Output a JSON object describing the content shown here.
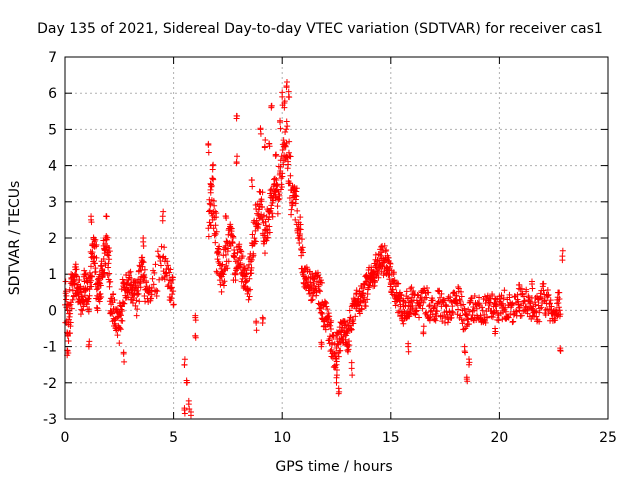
{
  "chart_data": {
    "type": "scatter",
    "title": "Day 135 of 2021, Sidereal Day-to-day VTEC variation (SDTVAR) for receiver cas1",
    "xlabel": "GPS time / hours",
    "ylabel": "SDTVAR / TECUs",
    "xlim": [
      0,
      25
    ],
    "ylim": [
      -3,
      7
    ],
    "xticks": [
      0,
      5,
      10,
      15,
      20,
      25
    ],
    "yticks": [
      -3,
      -2,
      -1,
      0,
      1,
      2,
      3,
      4,
      5,
      6,
      7
    ],
    "grid": true,
    "marker": "+",
    "color": "#ff0000",
    "series": [
      {
        "name": "SDTVAR cas1",
        "trace": [
          [
            0.0,
            0.3
          ],
          [
            0.15,
            -0.6
          ],
          [
            0.3,
            0.6
          ],
          [
            0.45,
            0.9
          ],
          [
            0.6,
            0.5
          ],
          [
            0.75,
            0.2
          ],
          [
            0.9,
            0.7
          ],
          [
            1.05,
            0.4
          ],
          [
            1.2,
            1.2
          ],
          [
            1.35,
            1.8
          ],
          [
            1.5,
            0.4
          ],
          [
            1.65,
            0.9
          ],
          [
            1.8,
            1.6
          ],
          [
            1.95,
            1.8
          ],
          [
            2.1,
            0.3
          ],
          [
            2.3,
            -0.2
          ],
          [
            2.5,
            -0.4
          ],
          [
            2.7,
            0.5
          ],
          [
            2.9,
            0.8
          ],
          [
            3.1,
            0.6
          ],
          [
            3.3,
            0.4
          ],
          [
            3.5,
            1.2
          ],
          [
            3.7,
            0.6
          ],
          [
            4.0,
            0.5
          ],
          [
            4.5,
            1.5
          ],
          [
            4.8,
            0.8
          ],
          [
            5.0,
            0.3
          ],
          [
            6.6,
            2.4
          ],
          [
            6.8,
            3.2
          ],
          [
            7.0,
            1.6
          ],
          [
            7.2,
            0.9
          ],
          [
            7.4,
            1.5
          ],
          [
            7.6,
            2.0
          ],
          [
            7.8,
            1.2
          ],
          [
            8.0,
            1.5
          ],
          [
            8.2,
            1.0
          ],
          [
            8.4,
            0.6
          ],
          [
            8.6,
            1.5
          ],
          [
            8.8,
            2.5
          ],
          [
            9.0,
            3.0
          ],
          [
            9.2,
            2.0
          ],
          [
            9.4,
            2.6
          ],
          [
            9.6,
            3.4
          ],
          [
            9.8,
            3.2
          ],
          [
            10.0,
            4.2
          ],
          [
            10.2,
            4.8
          ],
          [
            10.4,
            3.2
          ],
          [
            10.6,
            3.0
          ],
          [
            10.8,
            2.0
          ],
          [
            11.0,
            1.0
          ],
          [
            11.2,
            0.8
          ],
          [
            11.4,
            0.6
          ],
          [
            11.6,
            0.7
          ],
          [
            11.8,
            0.3
          ],
          [
            12.0,
            -0.2
          ],
          [
            12.2,
            -0.7
          ],
          [
            12.4,
            -1.2
          ],
          [
            12.6,
            -0.8
          ],
          [
            12.8,
            -0.6
          ],
          [
            13.0,
            -0.8
          ],
          [
            13.2,
            -0.2
          ],
          [
            13.4,
            0.2
          ],
          [
            13.6,
            0.3
          ],
          [
            13.8,
            0.5
          ],
          [
            14.0,
            0.9
          ],
          [
            14.2,
            1.0
          ],
          [
            14.4,
            1.3
          ],
          [
            14.6,
            1.5
          ],
          [
            14.8,
            1.2
          ],
          [
            15.0,
            0.9
          ],
          [
            15.2,
            0.5
          ],
          [
            15.4,
            0.2
          ],
          [
            15.6,
            0.0
          ],
          [
            15.8,
            0.2
          ],
          [
            16.0,
            0.3
          ],
          [
            16.3,
            0.1
          ],
          [
            16.6,
            0.3
          ],
          [
            16.9,
            0.0
          ],
          [
            17.2,
            0.2
          ],
          [
            17.5,
            0.0
          ],
          [
            17.8,
            0.1
          ],
          [
            18.1,
            0.2
          ],
          [
            18.4,
            -0.2
          ],
          [
            18.7,
            0.0
          ],
          [
            19.0,
            0.1
          ],
          [
            19.3,
            0.0
          ],
          [
            19.6,
            0.1
          ],
          [
            19.9,
            0.0
          ],
          [
            20.2,
            0.2
          ],
          [
            20.5,
            0.0
          ],
          [
            20.8,
            0.1
          ],
          [
            21.1,
            0.3
          ],
          [
            21.4,
            0.2
          ],
          [
            21.7,
            0.0
          ],
          [
            22.0,
            0.4
          ],
          [
            22.3,
            0.1
          ],
          [
            22.6,
            0.0
          ],
          [
            22.8,
            0.3
          ]
        ],
        "spikes": [
          [
            0.1,
            -1.1
          ],
          [
            1.1,
            -1.0
          ],
          [
            1.2,
            2.5
          ],
          [
            1.9,
            2.6
          ],
          [
            2.7,
            -1.2
          ],
          [
            3.6,
            2.0
          ],
          [
            4.5,
            2.6
          ],
          [
            5.5,
            -1.5
          ],
          [
            5.6,
            -2.0
          ],
          [
            5.7,
            -2.5
          ],
          [
            5.8,
            -2.9
          ],
          [
            5.5,
            -2.7
          ],
          [
            6.0,
            -0.7
          ],
          [
            6.0,
            -0.2
          ],
          [
            6.6,
            4.6
          ],
          [
            6.7,
            3.5
          ],
          [
            6.8,
            4.0
          ],
          [
            7.4,
            2.6
          ],
          [
            7.9,
            5.3
          ],
          [
            7.9,
            4.1
          ],
          [
            8.6,
            3.6
          ],
          [
            9.0,
            5.0
          ],
          [
            9.2,
            4.5
          ],
          [
            9.4,
            4.6
          ],
          [
            9.5,
            5.6
          ],
          [
            9.7,
            4.3
          ],
          [
            9.9,
            5.2
          ],
          [
            10.0,
            5.9
          ],
          [
            10.1,
            5.6
          ],
          [
            10.2,
            6.2
          ],
          [
            10.3,
            5.9
          ],
          [
            8.8,
            -0.3
          ],
          [
            9.1,
            -0.2
          ],
          [
            11.8,
            -1.0
          ],
          [
            12.5,
            -2.0
          ],
          [
            12.6,
            -2.3
          ],
          [
            12.5,
            -1.5
          ],
          [
            13.2,
            -1.6
          ],
          [
            13.0,
            -1.1
          ],
          [
            14.2,
            0.9
          ],
          [
            15.8,
            -1.0
          ],
          [
            16.5,
            -0.6
          ],
          [
            18.5,
            -1.9
          ],
          [
            18.6,
            -1.5
          ],
          [
            18.4,
            -1.0
          ],
          [
            22.8,
            -1.1
          ],
          [
            22.9,
            1.5
          ],
          [
            21.5,
            0.8
          ],
          [
            20.9,
            0.6
          ],
          [
            19.8,
            -0.5
          ]
        ]
      }
    ]
  }
}
